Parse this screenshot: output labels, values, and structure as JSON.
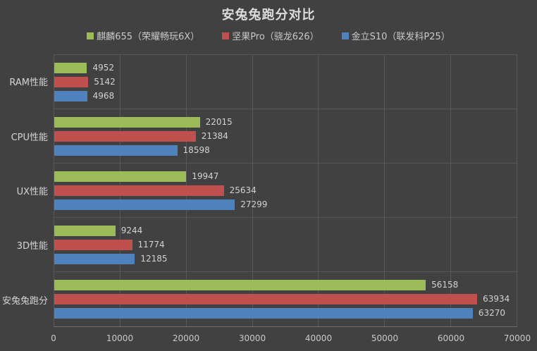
{
  "chart_data": {
    "type": "bar",
    "orientation": "horizontal",
    "title": "安兔兔跑分对比",
    "categories": [
      "RAM性能",
      "CPU性能",
      "UX性能",
      "3D性能",
      "安兔兔跑分"
    ],
    "series": [
      {
        "name": "麒麟655（荣耀畅玩6X）",
        "color": "#9BBB59",
        "values": [
          4952,
          22015,
          19947,
          9244,
          56158
        ]
      },
      {
        "name": "坚果Pro（骁龙626）",
        "color": "#C0504D",
        "values": [
          5142,
          21384,
          25634,
          11774,
          63934
        ]
      },
      {
        "name": "金立S10（联发科P25）",
        "color": "#4F81BD",
        "values": [
          4968,
          18598,
          27299,
          12185,
          63270
        ]
      }
    ],
    "xlim": [
      0,
      70000
    ],
    "x_ticks": [
      0,
      10000,
      20000,
      30000,
      40000,
      50000,
      60000,
      70000
    ],
    "grid": true,
    "legend_position": "top",
    "value_labels": true
  },
  "colors": {
    "background": "#414141",
    "gridline": "#575757",
    "axis_line": "#6E6E6E",
    "title_text": "#DCDCDC",
    "label_text": "#D4D4D4",
    "value_text": "#D2D2D2",
    "tick_text": "#C9C9C9"
  }
}
